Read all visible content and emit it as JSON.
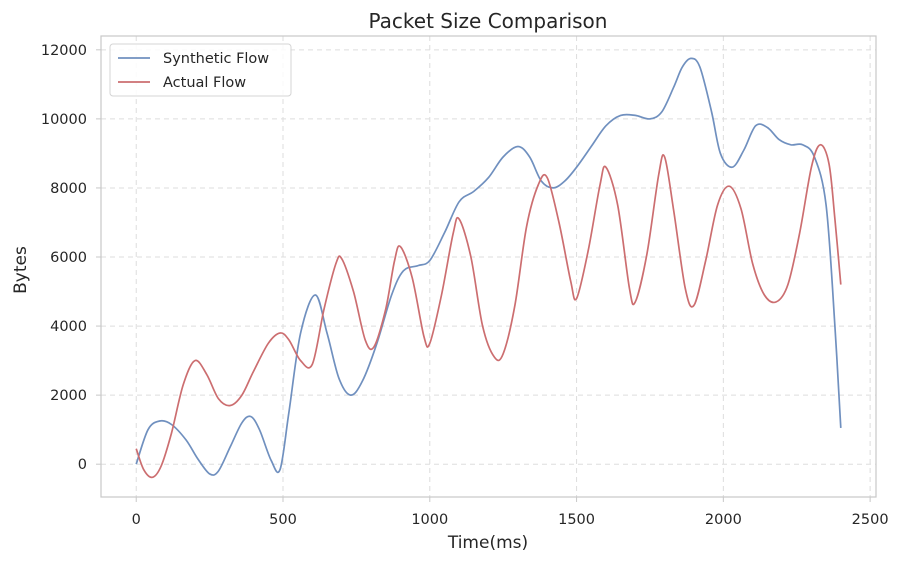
{
  "chart_data": {
    "type": "line",
    "title": "Packet Size Comparison",
    "xlabel": "Time(ms)",
    "ylabel": "Bytes",
    "xlim": [
      -120,
      2520
    ],
    "ylim": [
      -950,
      12400
    ],
    "xticks": [
      0,
      500,
      1000,
      1500,
      2000,
      2500
    ],
    "yticks": [
      0,
      2000,
      4000,
      6000,
      8000,
      10000,
      12000
    ],
    "grid": true,
    "legend_position": "top-left",
    "series": [
      {
        "name": "Synthetic Flow",
        "color": "#7090bf",
        "points": [
          [
            0,
            0
          ],
          [
            40,
            1000
          ],
          [
            80,
            1250
          ],
          [
            120,
            1150
          ],
          [
            170,
            700
          ],
          [
            210,
            150
          ],
          [
            250,
            -280
          ],
          [
            280,
            -200
          ],
          [
            320,
            500
          ],
          [
            360,
            1200
          ],
          [
            390,
            1380
          ],
          [
            420,
            1000
          ],
          [
            460,
            100
          ],
          [
            490,
            -150
          ],
          [
            520,
            1500
          ],
          [
            560,
            3800
          ],
          [
            610,
            4900
          ],
          [
            650,
            3800
          ],
          [
            690,
            2500
          ],
          [
            730,
            2000
          ],
          [
            770,
            2400
          ],
          [
            820,
            3500
          ],
          [
            870,
            4900
          ],
          [
            910,
            5600
          ],
          [
            960,
            5750
          ],
          [
            1000,
            5900
          ],
          [
            1050,
            6700
          ],
          [
            1100,
            7600
          ],
          [
            1150,
            7900
          ],
          [
            1200,
            8300
          ],
          [
            1250,
            8900
          ],
          [
            1300,
            9200
          ],
          [
            1340,
            8900
          ],
          [
            1380,
            8200
          ],
          [
            1420,
            8000
          ],
          [
            1460,
            8200
          ],
          [
            1500,
            8600
          ],
          [
            1550,
            9200
          ],
          [
            1600,
            9800
          ],
          [
            1650,
            10100
          ],
          [
            1700,
            10100
          ],
          [
            1750,
            10000
          ],
          [
            1790,
            10200
          ],
          [
            1830,
            10900
          ],
          [
            1860,
            11500
          ],
          [
            1890,
            11750
          ],
          [
            1920,
            11500
          ],
          [
            1960,
            10200
          ],
          [
            1990,
            9000
          ],
          [
            2030,
            8600
          ],
          [
            2070,
            9100
          ],
          [
            2110,
            9800
          ],
          [
            2150,
            9750
          ],
          [
            2190,
            9400
          ],
          [
            2230,
            9250
          ],
          [
            2270,
            9250
          ],
          [
            2310,
            8900
          ],
          [
            2350,
            7500
          ],
          [
            2380,
            4000
          ],
          [
            2400,
            1050
          ]
        ]
      },
      {
        "name": "Actual Flow",
        "color": "#cc6e70",
        "points": [
          [
            0,
            450
          ],
          [
            25,
            -150
          ],
          [
            55,
            -380
          ],
          [
            85,
            -50
          ],
          [
            120,
            900
          ],
          [
            160,
            2300
          ],
          [
            200,
            3000
          ],
          [
            240,
            2600
          ],
          [
            280,
            1900
          ],
          [
            320,
            1700
          ],
          [
            360,
            2000
          ],
          [
            400,
            2700
          ],
          [
            450,
            3500
          ],
          [
            490,
            3800
          ],
          [
            520,
            3600
          ],
          [
            560,
            3000
          ],
          [
            600,
            2900
          ],
          [
            640,
            4500
          ],
          [
            680,
            5800
          ],
          [
            700,
            5950
          ],
          [
            740,
            5000
          ],
          [
            780,
            3600
          ],
          [
            810,
            3400
          ],
          [
            850,
            4500
          ],
          [
            880,
            5900
          ],
          [
            900,
            6300
          ],
          [
            940,
            5400
          ],
          [
            980,
            3700
          ],
          [
            1000,
            3500
          ],
          [
            1040,
            4900
          ],
          [
            1080,
            6700
          ],
          [
            1100,
            7100
          ],
          [
            1140,
            6000
          ],
          [
            1180,
            4000
          ],
          [
            1220,
            3100
          ],
          [
            1250,
            3200
          ],
          [
            1290,
            4600
          ],
          [
            1330,
            6900
          ],
          [
            1370,
            8100
          ],
          [
            1400,
            8300
          ],
          [
            1440,
            7000
          ],
          [
            1480,
            5300
          ],
          [
            1500,
            4800
          ],
          [
            1540,
            6200
          ],
          [
            1580,
            8100
          ],
          [
            1600,
            8600
          ],
          [
            1640,
            7500
          ],
          [
            1680,
            5100
          ],
          [
            1700,
            4700
          ],
          [
            1740,
            6100
          ],
          [
            1780,
            8400
          ],
          [
            1800,
            8900
          ],
          [
            1830,
            7400
          ],
          [
            1870,
            5100
          ],
          [
            1900,
            4600
          ],
          [
            1940,
            5900
          ],
          [
            1980,
            7500
          ],
          [
            2020,
            8050
          ],
          [
            2060,
            7400
          ],
          [
            2100,
            5800
          ],
          [
            2140,
            4900
          ],
          [
            2180,
            4700
          ],
          [
            2220,
            5200
          ],
          [
            2260,
            6700
          ],
          [
            2300,
            8600
          ],
          [
            2330,
            9250
          ],
          [
            2360,
            8700
          ],
          [
            2380,
            7100
          ],
          [
            2400,
            5200
          ]
        ]
      }
    ]
  }
}
